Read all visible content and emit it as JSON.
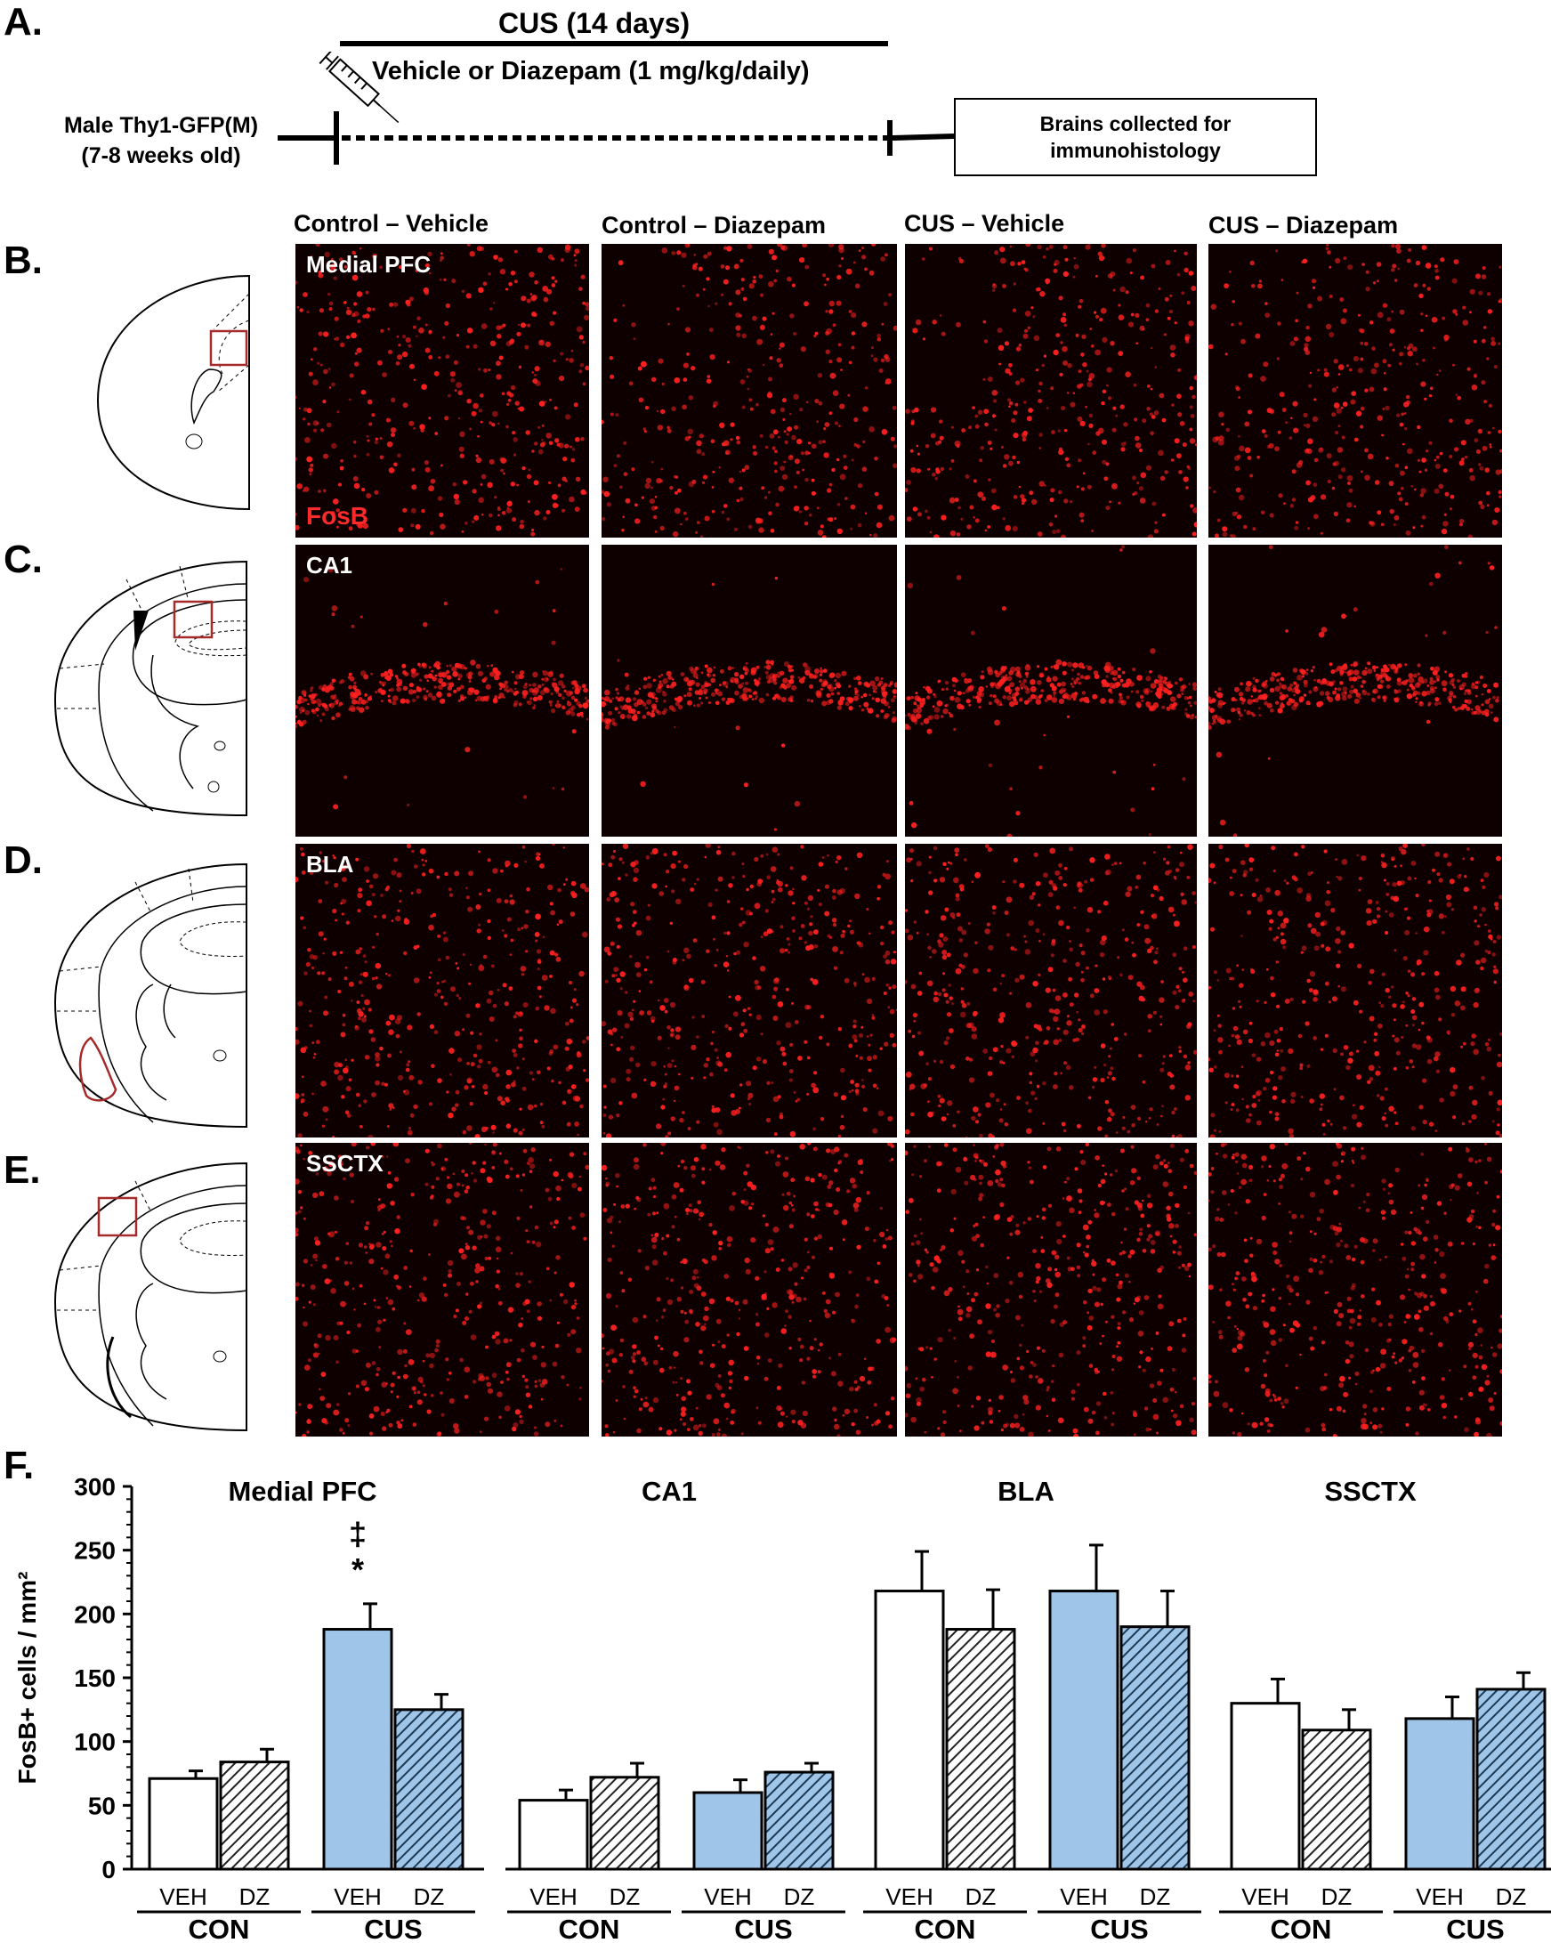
{
  "panels": {
    "a": "A.",
    "b": "B.",
    "c": "C.",
    "d": "D.",
    "e": "E.",
    "f": "F."
  },
  "timeline": {
    "cus_label": "CUS (14 days)",
    "drug_label": "Vehicle or Diazepam (1 mg/kg/daily)",
    "subject_line1": "Male Thy1-GFP(M)",
    "subject_line2": "(7-8 weeks old)",
    "box_line1": "Brains collected for",
    "box_line2": "immunohistology"
  },
  "columns": [
    "Control – Vehicle",
    "Control – Diazepam",
    "CUS – Vehicle",
    "CUS – Diazepam"
  ],
  "micrograph_rows": [
    {
      "region": "Medial PFC",
      "stain": "FosB"
    },
    {
      "region": "CA1"
    },
    {
      "region": "BLA"
    },
    {
      "region": "SSCTX"
    }
  ],
  "colors": {
    "cus_fill": "#9fc5e8",
    "stain": "#ff2020",
    "roi": "#a52a2a"
  },
  "chart_data": {
    "type": "bar",
    "ylabel": "FosB+ cells / mm²",
    "ylim": [
      0,
      300
    ],
    "yticks": [
      "0",
      "50",
      "100",
      "150",
      "200",
      "250",
      "300"
    ],
    "bar_labels": [
      "VEH",
      "DZ",
      "VEH",
      "DZ"
    ],
    "group_labels": [
      "CON",
      "CUS"
    ],
    "fills": [
      "white",
      "hatch",
      "blue",
      "blue-hatch"
    ],
    "subplots": [
      {
        "title": "Medial PFC",
        "values": [
          71,
          84,
          188,
          125
        ],
        "errors": [
          6,
          10,
          20,
          12
        ],
        "annotation": [
          "‡",
          "*"
        ]
      },
      {
        "title": "CA1",
        "values": [
          54,
          72,
          60,
          76
        ],
        "errors": [
          8,
          11,
          10,
          7
        ]
      },
      {
        "title": "BLA",
        "values": [
          218,
          188,
          218,
          190
        ],
        "errors": [
          31,
          31,
          36,
          28
        ]
      },
      {
        "title": "SSCTX",
        "values": [
          130,
          109,
          118,
          141
        ],
        "errors": [
          19,
          16,
          17,
          13
        ]
      }
    ]
  }
}
